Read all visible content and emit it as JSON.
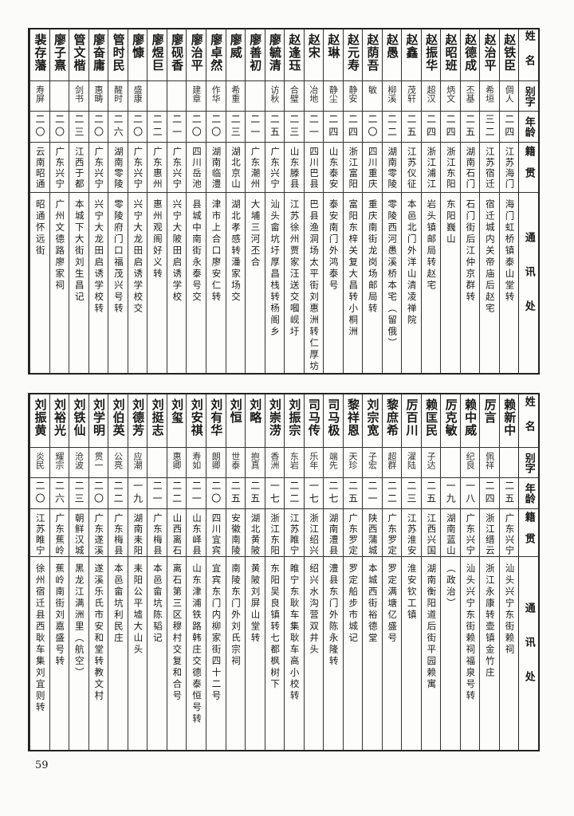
{
  "headers": [
    "姓名",
    "别字",
    "年龄",
    "籍贯",
    "通讯处"
  ],
  "top_table": [
    {
      "name": "赵铁臣",
      "alias": "倜人",
      "age": "二四",
      "origin": "江苏海门",
      "address": "海门虹桥镇泰山堂转"
    },
    {
      "name": "赵治平",
      "alias": "希垣",
      "age": "三二",
      "origin": "江苏宿迁",
      "address": "宿迁城内关帝庙后赵宅"
    },
    {
      "name": "赵德成",
      "alias": "丕基",
      "age": "二五",
      "origin": "湖南石门",
      "address": "石门街后江仲京群转"
    },
    {
      "name": "赵昭班",
      "alias": "炳文",
      "age": "二四",
      "origin": "浙江东阳",
      "address": "东阳巍山"
    },
    {
      "name": "赵振华",
      "alias": "超汉",
      "age": "二四",
      "origin": "浙江浦江",
      "address": "岩头镇邮局转赵宅"
    },
    {
      "name": "赵鑫",
      "alias": "茂轩",
      "age": "二五",
      "origin": "江苏仪征",
      "address": "本邑北门外洋山清凌禅院"
    },
    {
      "name": "赵愚",
      "alias": "柳溪",
      "age": "二二",
      "origin": "湖南零陵",
      "address": "零陵西河愚溪桥本宅（留俄）"
    },
    {
      "name": "赵荫吾",
      "alias": "敏",
      "age": "二〇",
      "origin": "四川重庆",
      "address": "重庆南街龙岗场邮局转"
    },
    {
      "name": "赵元寿",
      "alias": "静安",
      "age": "二四",
      "origin": "浙江富阳",
      "address": "富阳东梓关复大昌转小桐洲"
    },
    {
      "name": "赵琳",
      "alias": "静尘",
      "age": "二四",
      "origin": "山东泰安",
      "address": "泰安南门外鸿泰号"
    },
    {
      "name": "赵宋",
      "alias": "冶地",
      "age": "二一",
      "origin": "四川巴县",
      "address": "巴县渔洞场太平街刘惠洲转仁厚坊"
    },
    {
      "name": "赵逢珏",
      "alias": "合璧",
      "age": "二三",
      "origin": "山东滕县",
      "address": "江苏徐州贾家汪送交嘓岘圩"
    },
    {
      "name": "廖毓清",
      "alias": "访秋",
      "age": "二五",
      "origin": "广东兴宁",
      "address": "汕头畲坑圩厚昌栈转杨阁乡"
    },
    {
      "name": "廖善初",
      "alias": "",
      "age": "二一",
      "origin": "广东潮州",
      "address": "大埔三河丕合"
    },
    {
      "name": "廖威",
      "alias": "希重",
      "age": "二三",
      "origin": "湖北京山",
      "address": "湖北孝感转潘家场交"
    },
    {
      "name": "廖卓然",
      "alias": "作华",
      "age": "二〇",
      "origin": "湖南临澧",
      "address": "津市上合口廖安仁转"
    },
    {
      "name": "廖治平",
      "alias": "建章",
      "age": "二〇",
      "origin": "四川岳池",
      "address": "县城中南街永泰号交"
    },
    {
      "name": "廖砚香",
      "alias": "",
      "age": "二一",
      "origin": "广东兴宁",
      "address": "兴宁大陂田启诱学校"
    },
    {
      "name": "廖煜巨",
      "alias": "",
      "age": "二二",
      "origin": "广东惠州",
      "address": "惠州观阁好义转"
    },
    {
      "name": "廖慷",
      "alias": "盛康",
      "age": "二〇",
      "origin": "广东兴宁",
      "address": "兴宁大龙田启诱学校交"
    },
    {
      "name": "管时民",
      "alias": "醒时",
      "age": "二六",
      "origin": "湖南零陵",
      "address": "零陵府门口福茂兴号转"
    },
    {
      "name": "廖奋庸",
      "alias": "惠畴",
      "age": "二〇",
      "origin": "广东兴宁",
      "address": "兴宁大龙田启诱学校转"
    },
    {
      "name": "管文楷",
      "alias": "剑书",
      "age": "二三",
      "origin": "江西于都",
      "address": "本城下大街刘生昌记"
    },
    {
      "name": "廖子熹",
      "alias": "",
      "age": "二〇",
      "origin": "广东兴宁",
      "address": "广州文德路廖家祠"
    },
    {
      "name": "裴存藩",
      "alias": "寿屏",
      "age": "二〇",
      "origin": "云南昭通",
      "address": "昭通怀远街"
    }
  ],
  "bottom_table": [
    {
      "name": "赖新中",
      "alias": "",
      "age": "二五",
      "origin": "广东兴宁",
      "address": "汕头兴宁东街赖祠"
    },
    {
      "name": "厉言",
      "alias": "佩祥",
      "age": "二四",
      "origin": "浙江缙云",
      "address": "浙江永康转壶镇金竹庄"
    },
    {
      "name": "赖中威",
      "alias": "纪良",
      "age": "一八",
      "origin": "广东兴宁",
      "address": "汕头兴宁东街赖祠福泉号转"
    },
    {
      "name": "厉克敏",
      "alias": "",
      "age": "一九",
      "origin": "湖南蓝山",
      "address": "（政治）"
    },
    {
      "name": "赖匡民",
      "alias": "子达",
      "age": "二五",
      "origin": "江西兴国",
      "address": "湖南衡阳道后街平园赖寓"
    },
    {
      "name": "厉百川",
      "alias": "濯陆",
      "age": "二三",
      "origin": "江苏淮安",
      "address": "淮安钦工镇"
    },
    {
      "name": "黎庶希",
      "alias": "超群",
      "age": "二二",
      "origin": "广东罗定",
      "address": "罗定满塘亿盛号"
    },
    {
      "name": "刘宗宽",
      "alias": "子宏",
      "age": "二一",
      "origin": "陕西蒲城",
      "address": "本城西街裕德堂"
    },
    {
      "name": "黎祥恩",
      "alias": "天珍",
      "age": "二五",
      "origin": "广东罗定",
      "address": "罗定船步市城记"
    },
    {
      "name": "司马极",
      "alias": "端先",
      "age": "二七",
      "origin": "湖南澧县",
      "address": "澧县东门外陈永隆转"
    },
    {
      "name": "司马传",
      "alias": "乐年",
      "age": "一七",
      "origin": "浙江绍兴",
      "address": "绍兴水沟营双井头"
    },
    {
      "name": "刘振宗",
      "alias": "东岩",
      "age": "二二",
      "origin": "江苏睢宁",
      "address": "睢宁东耿车集耿车高小校转"
    },
    {
      "name": "刘崇涝",
      "alias": "香洲",
      "age": "一七",
      "origin": "浙江东阳",
      "address": "东阳吴良镇转七都枫树下"
    },
    {
      "name": "刘略",
      "alias": "抱真",
      "age": "二五",
      "origin": "湖北黄陂",
      "address": "黄陂刘屏山堂转"
    },
    {
      "name": "刘恒",
      "alias": "世泰",
      "age": "二五",
      "origin": "安徽南陵",
      "address": "南陵东门外刘氏宗祠"
    },
    {
      "name": "刘有华",
      "alias": "朗卿",
      "age": "二〇",
      "origin": "四川宜宾",
      "address": "宜宾东门内柳家街四十二号"
    },
    {
      "name": "刘安祺",
      "alias": "寿如",
      "age": "二一",
      "origin": "山东峄县",
      "address": "山东津浦铁路韩庄交德泰恒号转"
    },
    {
      "name": "刘玺",
      "alias": "惠卿",
      "age": "二二",
      "origin": "山西离石",
      "address": "离石第三区穆村交复和合号"
    },
    {
      "name": "刘挺志",
      "alias": "",
      "age": "二一",
      "origin": "广东梅县",
      "address": "本邑畲坑陈韬记"
    },
    {
      "name": "刘德芳",
      "alias": "应潮",
      "age": "一九",
      "origin": "湖南耒阳",
      "address": "耒阳公平墟大山头"
    },
    {
      "name": "刘伯英",
      "alias": "公亮",
      "age": "二二",
      "origin": "广东梅县",
      "address": "本邑畲坑利民庄"
    },
    {
      "name": "刘学明",
      "alias": "贯一",
      "age": "二〇",
      "origin": "广东遂溪",
      "address": "遂溪乐氏市安和堂转教文村"
    },
    {
      "name": "刘铁仙",
      "alias": "沧波",
      "age": "二三",
      "origin": "朝鲜汉城",
      "address": "黑龙江满洲里（航空）"
    },
    {
      "name": "刘裕光",
      "alias": "耀宗",
      "age": "二六",
      "origin": "广东蕉岭",
      "address": "蕉岭南街刘嘉盛号转"
    },
    {
      "name": "刘振黄",
      "alias": "炎民",
      "age": "二〇",
      "origin": "江苏睢宁",
      "address": "徐州宿迁县西耿车集刘宜则转"
    }
  ],
  "page_number": "59"
}
